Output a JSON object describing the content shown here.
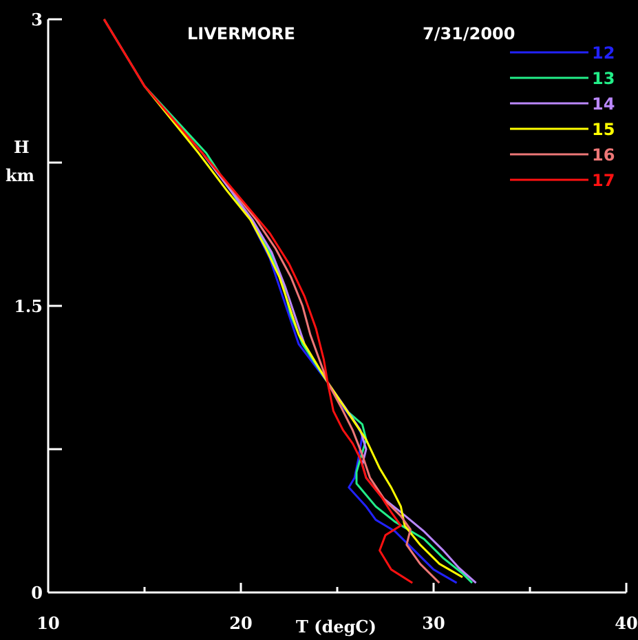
{
  "chart_data": {
    "type": "line",
    "title": "LIVERMORE",
    "date": "7/31/2000",
    "xlabel": "T (degC)",
    "ylabel_line1": "H",
    "ylabel_line2": "km",
    "xlim": [
      10,
      40
    ],
    "ylim": [
      0,
      3
    ],
    "x_ticks": [
      10,
      20,
      30,
      40
    ],
    "x_tick_labels": [
      "10",
      "20",
      "30",
      "40"
    ],
    "y_ticks": [
      0,
      1.5,
      3
    ],
    "y_tick_labels": [
      "0",
      "1.5",
      "3"
    ],
    "grid": false,
    "legend_position": "top-right",
    "series": [
      {
        "name": "12",
        "color": "#2222ff",
        "points": [
          [
            12.9,
            3.0
          ],
          [
            15.0,
            2.65
          ],
          [
            18.0,
            2.3
          ],
          [
            19.5,
            2.1
          ],
          [
            20.5,
            1.95
          ],
          [
            21.5,
            1.75
          ],
          [
            22.0,
            1.6
          ],
          [
            22.5,
            1.45
          ],
          [
            23.0,
            1.3
          ],
          [
            24.5,
            1.1
          ],
          [
            25.3,
            0.97
          ],
          [
            26.0,
            0.88
          ],
          [
            26.3,
            0.82
          ],
          [
            26.1,
            0.7
          ],
          [
            25.9,
            0.6
          ],
          [
            25.6,
            0.55
          ],
          [
            26.5,
            0.45
          ],
          [
            27.0,
            0.38
          ],
          [
            28.0,
            0.32
          ],
          [
            29.0,
            0.22
          ],
          [
            30.0,
            0.12
          ],
          [
            31.2,
            0.05
          ]
        ]
      },
      {
        "name": "13",
        "color": "#22ee88",
        "points": [
          [
            12.9,
            3.0
          ],
          [
            15.0,
            2.65
          ],
          [
            18.2,
            2.3
          ],
          [
            19.5,
            2.1
          ],
          [
            20.5,
            1.95
          ],
          [
            21.5,
            1.78
          ],
          [
            22.2,
            1.6
          ],
          [
            22.6,
            1.45
          ],
          [
            23.2,
            1.3
          ],
          [
            24.5,
            1.1
          ],
          [
            25.5,
            0.95
          ],
          [
            26.3,
            0.88
          ],
          [
            26.5,
            0.8
          ],
          [
            26.2,
            0.7
          ],
          [
            26.0,
            0.63
          ],
          [
            26.0,
            0.57
          ],
          [
            27.0,
            0.45
          ],
          [
            28.0,
            0.37
          ],
          [
            29.5,
            0.28
          ],
          [
            30.5,
            0.18
          ],
          [
            31.5,
            0.1
          ],
          [
            32.0,
            0.05
          ]
        ]
      },
      {
        "name": "14",
        "color": "#bb88ff",
        "points": [
          [
            12.9,
            3.0
          ],
          [
            15.0,
            2.65
          ],
          [
            18.0,
            2.3
          ],
          [
            19.5,
            2.1
          ],
          [
            20.6,
            1.95
          ],
          [
            21.6,
            1.78
          ],
          [
            22.3,
            1.6
          ],
          [
            22.8,
            1.45
          ],
          [
            23.3,
            1.3
          ],
          [
            24.5,
            1.1
          ],
          [
            25.4,
            0.97
          ],
          [
            26.2,
            0.85
          ],
          [
            26.5,
            0.75
          ],
          [
            26.3,
            0.67
          ],
          [
            26.5,
            0.6
          ],
          [
            27.3,
            0.5
          ],
          [
            28.3,
            0.42
          ],
          [
            29.5,
            0.32
          ],
          [
            30.5,
            0.22
          ],
          [
            31.3,
            0.13
          ],
          [
            32.2,
            0.05
          ]
        ]
      },
      {
        "name": "15",
        "color": "#ffff00",
        "points": [
          [
            12.9,
            3.0
          ],
          [
            15.0,
            2.65
          ],
          [
            17.8,
            2.3
          ],
          [
            19.3,
            2.1
          ],
          [
            20.5,
            1.95
          ],
          [
            21.3,
            1.8
          ],
          [
            22.0,
            1.65
          ],
          [
            22.5,
            1.5
          ],
          [
            23.0,
            1.35
          ],
          [
            24.5,
            1.1
          ],
          [
            25.5,
            0.95
          ],
          [
            26.5,
            0.8
          ],
          [
            27.2,
            0.65
          ],
          [
            27.8,
            0.55
          ],
          [
            28.3,
            0.45
          ],
          [
            28.5,
            0.35
          ],
          [
            29.3,
            0.25
          ],
          [
            30.3,
            0.15
          ],
          [
            31.5,
            0.08
          ]
        ]
      },
      {
        "name": "16",
        "color": "#ee7777",
        "points": [
          [
            12.9,
            3.0
          ],
          [
            15.0,
            2.65
          ],
          [
            18.0,
            2.3
          ],
          [
            19.6,
            2.1
          ],
          [
            20.8,
            1.95
          ],
          [
            21.8,
            1.8
          ],
          [
            22.6,
            1.65
          ],
          [
            23.2,
            1.5
          ],
          [
            23.6,
            1.35
          ],
          [
            24.5,
            1.1
          ],
          [
            25.2,
            0.97
          ],
          [
            25.8,
            0.85
          ],
          [
            26.3,
            0.72
          ],
          [
            26.7,
            0.6
          ],
          [
            27.5,
            0.48
          ],
          [
            28.3,
            0.4
          ],
          [
            28.8,
            0.33
          ],
          [
            28.6,
            0.25
          ],
          [
            29.3,
            0.15
          ],
          [
            30.3,
            0.05
          ]
        ]
      },
      {
        "name": "17",
        "color": "#ff1111",
        "points": [
          [
            12.9,
            3.0
          ],
          [
            15.0,
            2.65
          ],
          [
            18.0,
            2.3
          ],
          [
            19.5,
            2.12
          ],
          [
            20.5,
            2.0
          ],
          [
            21.5,
            1.88
          ],
          [
            22.5,
            1.72
          ],
          [
            23.3,
            1.55
          ],
          [
            23.9,
            1.38
          ],
          [
            24.3,
            1.22
          ],
          [
            24.5,
            1.1
          ],
          [
            24.8,
            0.95
          ],
          [
            25.3,
            0.85
          ],
          [
            25.8,
            0.78
          ],
          [
            26.2,
            0.7
          ],
          [
            26.5,
            0.6
          ],
          [
            27.3,
            0.5
          ],
          [
            27.8,
            0.42
          ],
          [
            28.3,
            0.35
          ],
          [
            27.5,
            0.3
          ],
          [
            27.2,
            0.22
          ],
          [
            27.8,
            0.12
          ],
          [
            28.9,
            0.05
          ]
        ]
      }
    ]
  }
}
